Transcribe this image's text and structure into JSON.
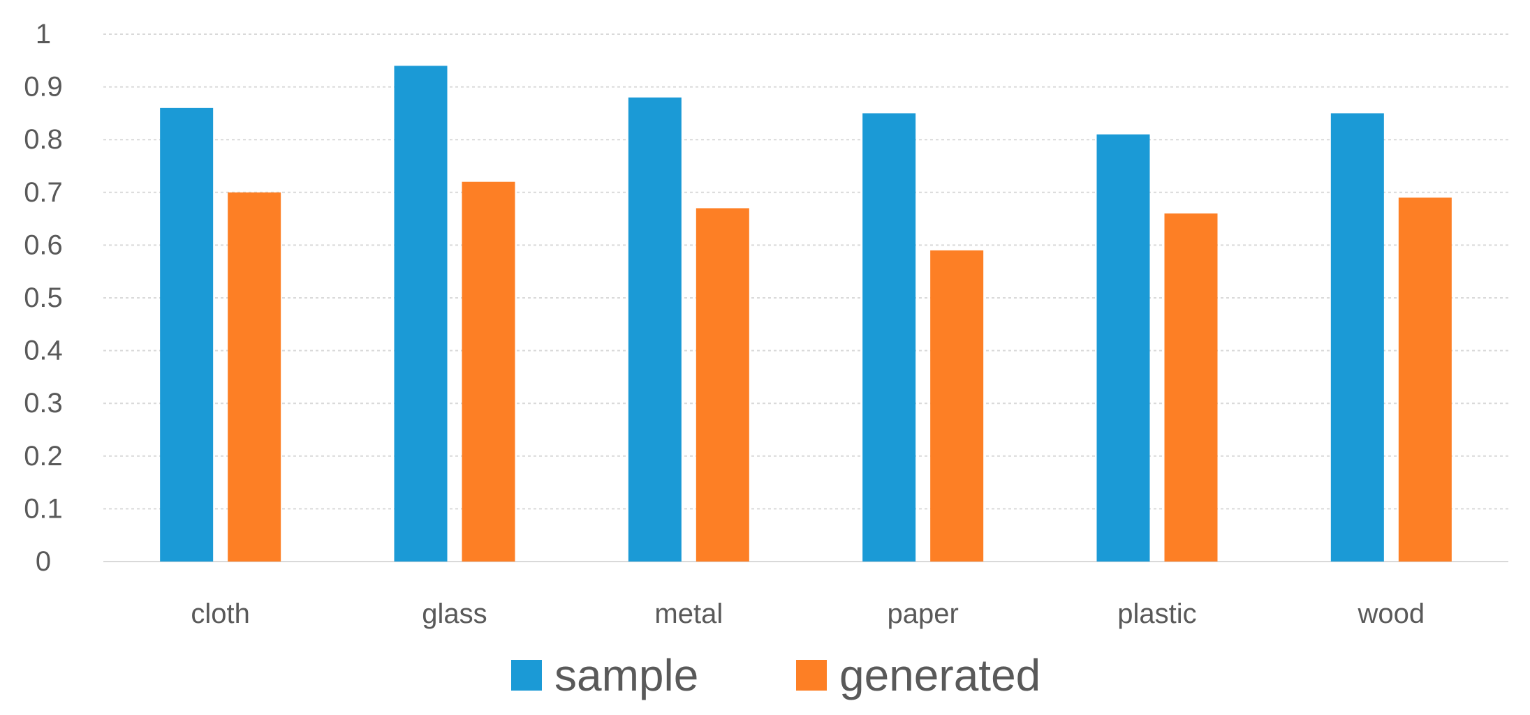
{
  "chart_data": {
    "type": "bar",
    "categories": [
      "cloth",
      "glass",
      "metal",
      "paper",
      "plastic",
      "wood"
    ],
    "series": [
      {
        "name": "sample",
        "color": "#1b9ad6",
        "values": [
          0.86,
          0.94,
          0.88,
          0.85,
          0.81,
          0.85
        ]
      },
      {
        "name": "generated",
        "color": "#fd7f25",
        "values": [
          0.7,
          0.72,
          0.67,
          0.59,
          0.66,
          0.69
        ]
      }
    ],
    "ylim": [
      0,
      1
    ],
    "yticks": [
      "0",
      "0.1",
      "0.2",
      "0.3",
      "0.4",
      "0.5",
      "0.6",
      "0.7",
      "0.8",
      "0.9",
      "1"
    ],
    "title": "",
    "xlabel": "",
    "ylabel": "",
    "grid": true,
    "legend_position": "bottom-center"
  }
}
